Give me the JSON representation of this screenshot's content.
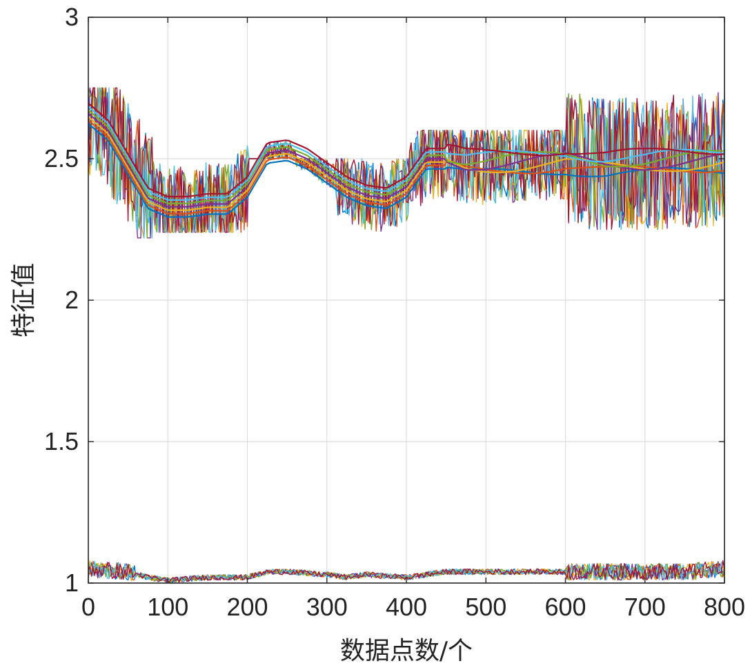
{
  "chart_data": {
    "type": "line",
    "title": "",
    "xlabel": "数据点数/个",
    "ylabel": "特征值",
    "xlim": [
      0,
      800
    ],
    "ylim": [
      1,
      3
    ],
    "xticks": [
      0,
      100,
      200,
      300,
      400,
      500,
      600,
      700,
      800
    ],
    "yticks": [
      1,
      1.5,
      2,
      2.5,
      3
    ],
    "xtick_labels": [
      "0",
      "100",
      "200",
      "300",
      "400",
      "500",
      "600",
      "700",
      "800"
    ],
    "ytick_labels": [
      "1",
      "1.5",
      "2",
      "2.5",
      "3"
    ],
    "grid": true,
    "legend": "none",
    "colors": [
      "#0072BD",
      "#D95319",
      "#EDB120",
      "#7E2F8E",
      "#77AC30",
      "#4DBEEE",
      "#A2142F"
    ],
    "upper_band": {
      "description_level": "noisy feature traces near 2.3–2.75",
      "segments": [
        {
          "x_start": 0,
          "x_end": 60,
          "min": 2.28,
          "max": 2.75
        },
        {
          "x_start": 60,
          "x_end": 80,
          "min": 2.22,
          "max": 2.7
        },
        {
          "x_start": 80,
          "x_end": 200,
          "min": 2.24,
          "max": 2.55
        },
        {
          "x_start": 200,
          "x_end": 260,
          "min": 2.5,
          "max": 2.58
        },
        {
          "x_start": 260,
          "x_end": 310,
          "min": 2.4,
          "max": 2.5
        },
        {
          "x_start": 310,
          "x_end": 400,
          "min": 2.24,
          "max": 2.5
        },
        {
          "x_start": 400,
          "x_end": 600,
          "min": 2.3,
          "max": 2.6
        },
        {
          "x_start": 600,
          "x_end": 800,
          "min": 2.25,
          "max": 2.75
        }
      ],
      "smoothed_trend": {
        "x": [
          0,
          25,
          50,
          75,
          100,
          125,
          150,
          175,
          200,
          225,
          250,
          275,
          300,
          325,
          350,
          375,
          400,
          425,
          450,
          475,
          500,
          550,
          600,
          650,
          700,
          750,
          800
        ],
        "y": [
          2.66,
          2.6,
          2.48,
          2.36,
          2.33,
          2.33,
          2.34,
          2.34,
          2.4,
          2.52,
          2.53,
          2.5,
          2.45,
          2.4,
          2.37,
          2.36,
          2.4,
          2.5,
          2.5,
          2.48,
          2.48,
          2.49,
          2.5,
          2.48,
          2.48,
          2.49,
          2.5
        ]
      }
    },
    "lower_band": {
      "description_level": "compact feature traces near 1.0–1.08",
      "smoothed_trend": {
        "x": [
          0,
          50,
          75,
          100,
          150,
          200,
          225,
          250,
          300,
          325,
          350,
          400,
          450,
          500,
          550,
          600,
          650,
          700,
          750,
          800
        ],
        "y": [
          1.05,
          1.04,
          1.02,
          1.01,
          1.02,
          1.02,
          1.04,
          1.04,
          1.03,
          1.02,
          1.03,
          1.02,
          1.04,
          1.04,
          1.04,
          1.04,
          1.04,
          1.04,
          1.04,
          1.05
        ]
      }
    }
  }
}
